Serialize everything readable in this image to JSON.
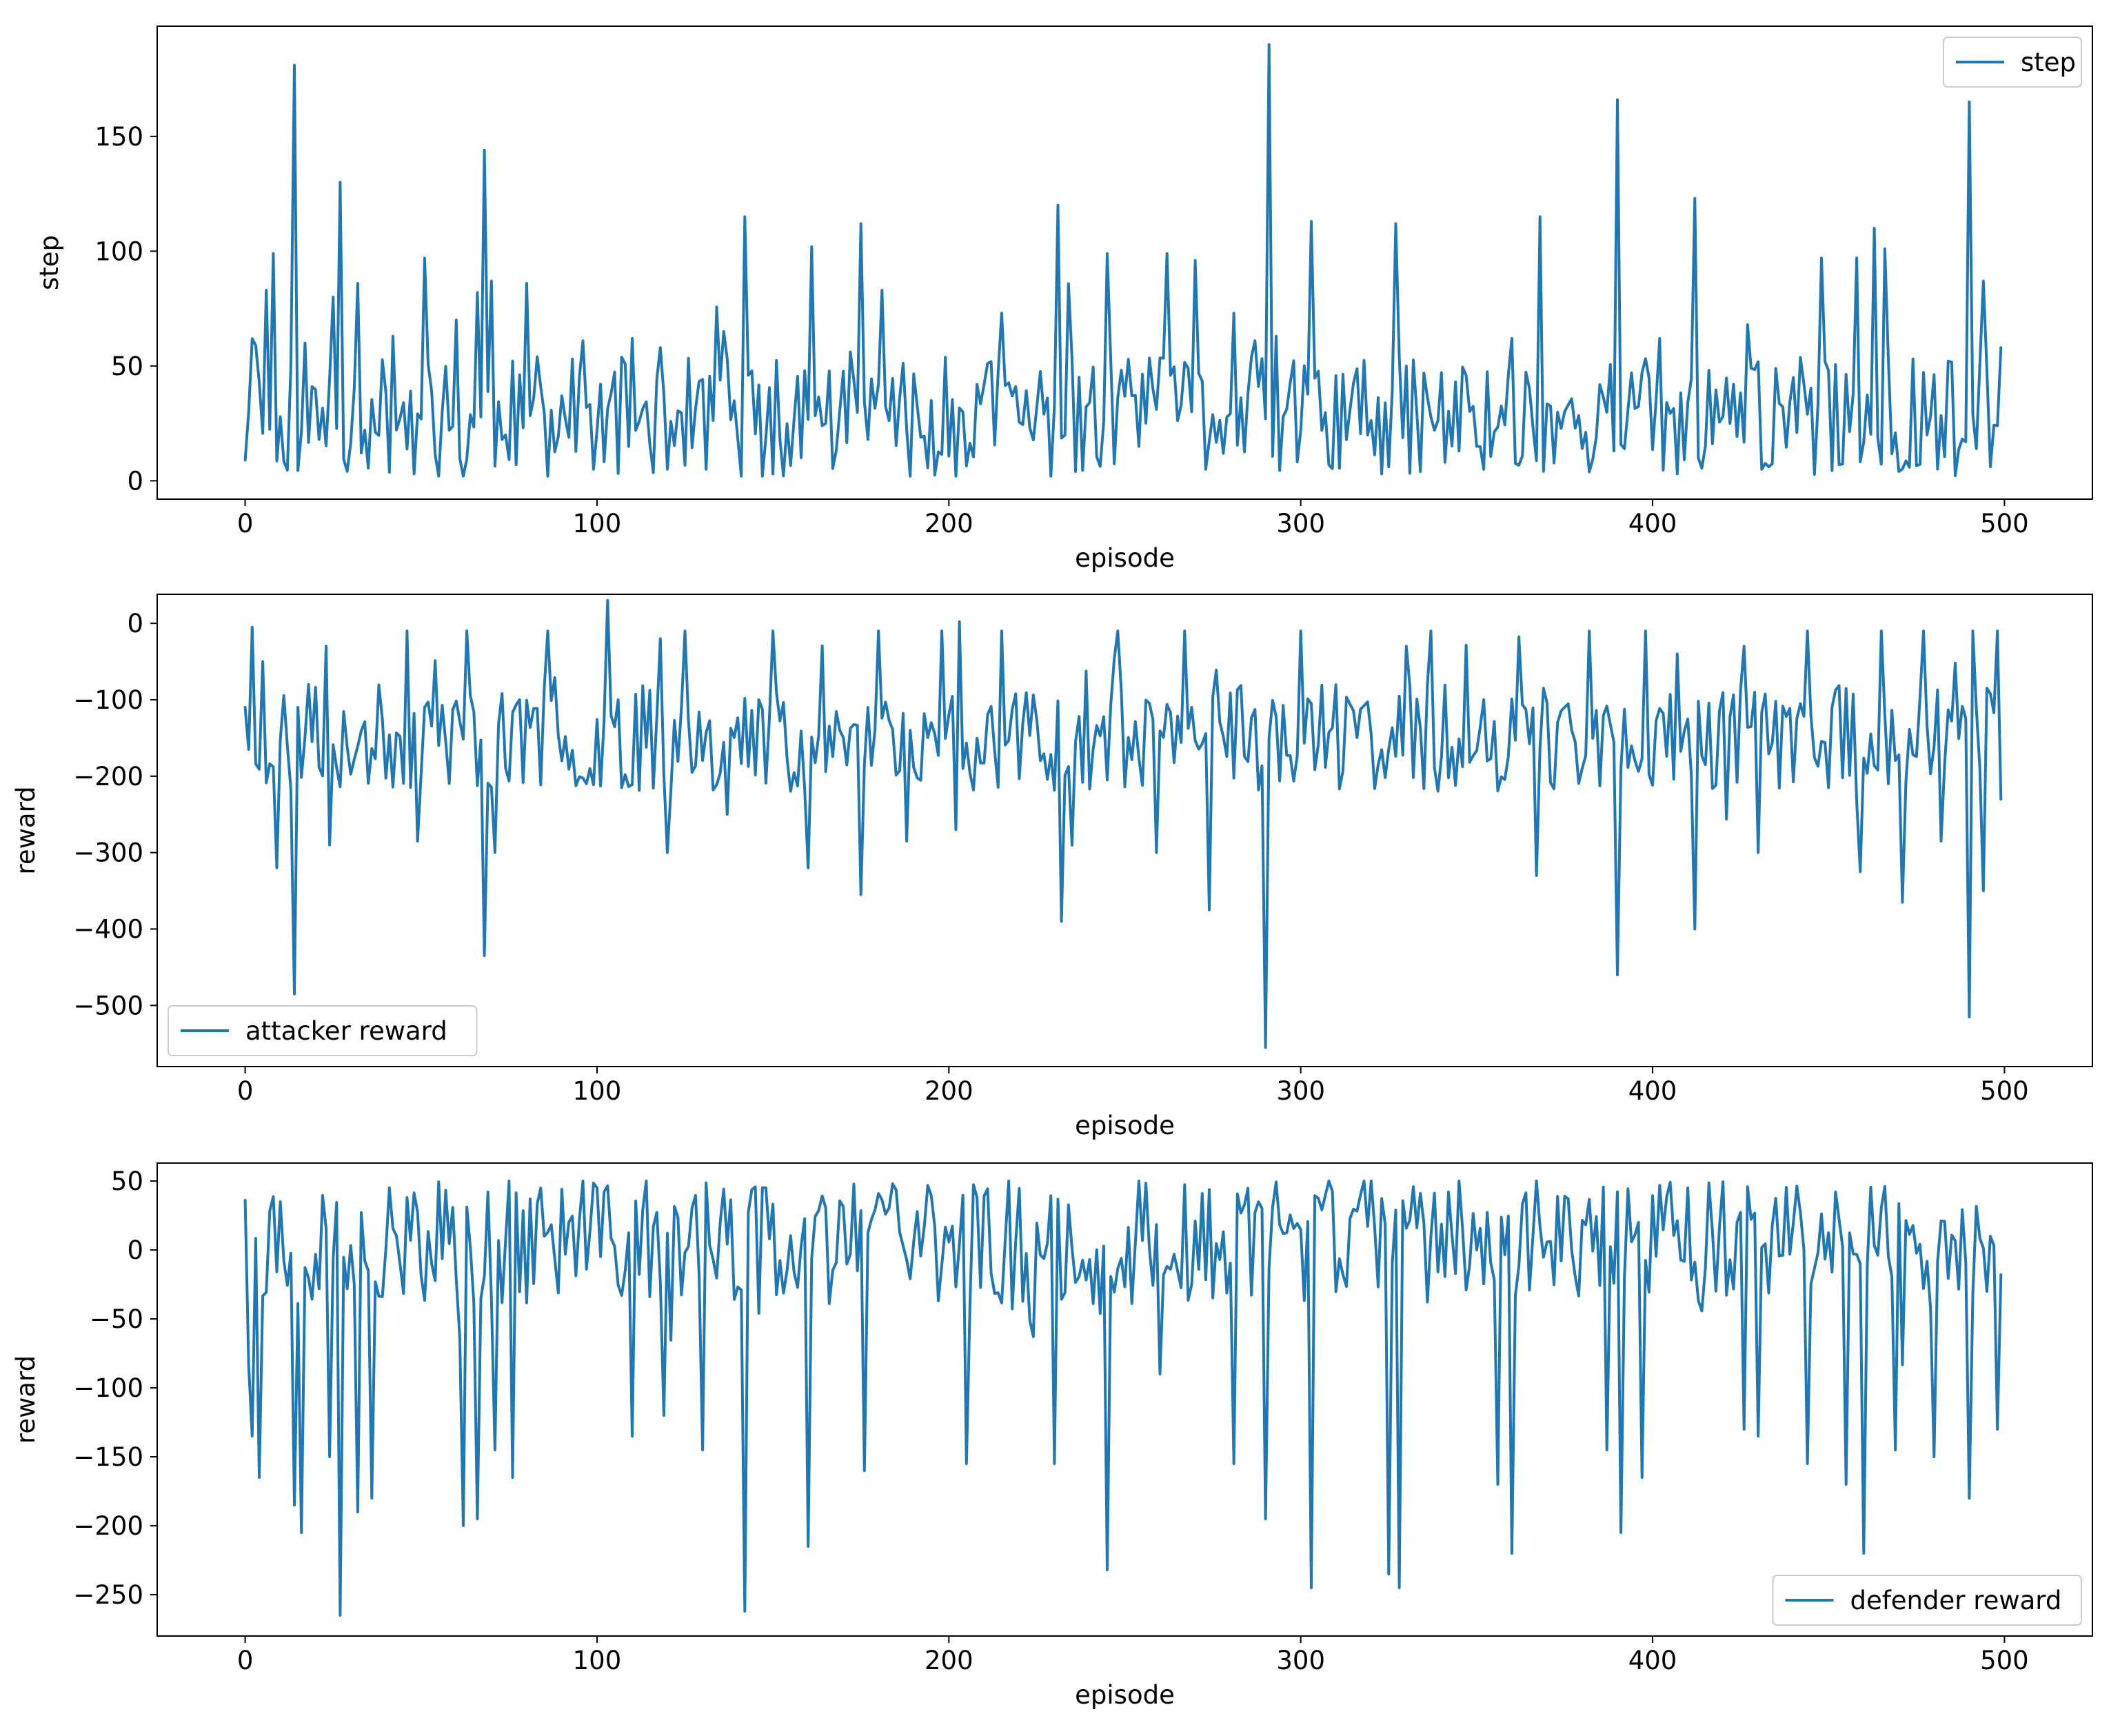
{
  "colors": {
    "series": "#1f77b4"
  },
  "chart_data": [
    {
      "type": "line",
      "xlabel": "episode",
      "ylabel": "step",
      "xlim": [
        -25,
        525
      ],
      "ylim": [
        -8,
        198
      ],
      "xticks": [
        0,
        100,
        200,
        300,
        400,
        500
      ],
      "yticks": [
        0,
        50,
        100,
        150
      ],
      "legend": "top-right",
      "series": [
        {
          "name": "step",
          "seed": 11,
          "x_start": 0,
          "x_end": 499,
          "count": 500,
          "base": 28,
          "spread": 26,
          "min": 2,
          "anchors": [
            [
              0,
              9
            ],
            [
              1,
              30
            ],
            [
              3,
              59
            ],
            [
              6,
              83
            ],
            [
              8,
              99
            ],
            [
              14,
              181
            ],
            [
              17,
              60
            ],
            [
              21,
              18
            ],
            [
              25,
              80
            ],
            [
              27,
              130
            ],
            [
              32,
              86
            ],
            [
              42,
              63
            ],
            [
              48,
              3
            ],
            [
              51,
              97
            ],
            [
              56,
              30
            ],
            [
              60,
              70
            ],
            [
              62,
              2
            ],
            [
              66,
              82
            ],
            [
              68,
              144
            ],
            [
              70,
              87
            ],
            [
              74,
              20
            ],
            [
              80,
              86
            ],
            [
              96,
              61
            ],
            [
              99,
              5
            ],
            [
              110,
              62
            ],
            [
              118,
              58
            ],
            [
              142,
              115
            ],
            [
              150,
              3
            ],
            [
              158,
              10
            ],
            [
              161,
              102
            ],
            [
              175,
              112
            ],
            [
              181,
              83
            ],
            [
              189,
              2
            ],
            [
              208,
              42
            ],
            [
              215,
              73
            ],
            [
              231,
              120
            ],
            [
              236,
              4
            ],
            [
              245,
              99
            ],
            [
              262,
              99
            ],
            [
              270,
              96
            ],
            [
              273,
              5
            ],
            [
              281,
              73
            ],
            [
              287,
              61
            ],
            [
              291,
              190
            ],
            [
              293,
              63
            ],
            [
              300,
              22
            ],
            [
              303,
              113
            ],
            [
              323,
              3
            ],
            [
              327,
              112
            ],
            [
              330,
              50
            ],
            [
              341,
              8
            ],
            [
              352,
              5
            ],
            [
              360,
              62
            ],
            [
              368,
              115
            ],
            [
              376,
              33
            ],
            [
              390,
              166
            ],
            [
              392,
              14
            ],
            [
              402,
              62
            ],
            [
              407,
              3
            ],
            [
              412,
              123
            ],
            [
              420,
              28
            ],
            [
              427,
              68
            ],
            [
              431,
              5
            ],
            [
              441,
              21
            ],
            [
              448,
              97
            ],
            [
              458,
              97
            ],
            [
              463,
              110
            ],
            [
              466,
              101
            ],
            [
              470,
              4
            ],
            [
              478,
              20
            ],
            [
              490,
              165
            ],
            [
              492,
              14
            ],
            [
              494,
              87
            ],
            [
              498,
              24
            ],
            [
              499,
              58
            ]
          ]
        }
      ]
    },
    {
      "type": "line",
      "xlabel": "episode",
      "ylabel": "reward",
      "xlim": [
        -25,
        525
      ],
      "ylim": [
        -580,
        38
      ],
      "xticks": [
        0,
        100,
        200,
        300,
        400,
        500
      ],
      "yticks": [
        0,
        -100,
        -200,
        -300,
        -400,
        -500
      ],
      "legend": "bottom-left",
      "series": [
        {
          "name": "attacker reward",
          "seed": 23,
          "x_start": 0,
          "x_end": 499,
          "count": 500,
          "base": -150,
          "spread": 70,
          "min": -560,
          "max": 32,
          "anchors": [
            [
              0,
              -110
            ],
            [
              1,
              -165
            ],
            [
              2,
              -5
            ],
            [
              5,
              -50
            ],
            [
              9,
              -320
            ],
            [
              14,
              -485
            ],
            [
              15,
              -110
            ],
            [
              23,
              -30
            ],
            [
              24,
              -290
            ],
            [
              46,
              -10
            ],
            [
              49,
              -285
            ],
            [
              51,
              -110
            ],
            [
              63,
              -10
            ],
            [
              68,
              -435
            ],
            [
              71,
              -300
            ],
            [
              86,
              -10
            ],
            [
              103,
              30
            ],
            [
              106,
              -100
            ],
            [
              118,
              -20
            ],
            [
              120,
              -300
            ],
            [
              125,
              -10
            ],
            [
              137,
              -250
            ],
            [
              146,
              -100
            ],
            [
              150,
              -10
            ],
            [
              160,
              -320
            ],
            [
              175,
              -355
            ],
            [
              180,
              -10
            ],
            [
              188,
              -285
            ],
            [
              189,
              -140
            ],
            [
              195,
              -130
            ],
            [
              198,
              -10
            ],
            [
              202,
              -270
            ],
            [
              215,
              -10
            ],
            [
              232,
              -390
            ],
            [
              248,
              -10
            ],
            [
              259,
              -300
            ],
            [
              267,
              -10
            ],
            [
              274,
              -375
            ],
            [
              290,
              -555
            ],
            [
              291,
              -150
            ],
            [
              300,
              -10
            ],
            [
              322,
              -185
            ],
            [
              330,
              -30
            ],
            [
              337,
              -10
            ],
            [
              352,
              -100
            ],
            [
              367,
              -330
            ],
            [
              382,
              -10
            ],
            [
              390,
              -460
            ],
            [
              398,
              -10
            ],
            [
              407,
              -40
            ],
            [
              412,
              -400
            ],
            [
              426,
              -30
            ],
            [
              430,
              -300
            ],
            [
              444,
              -10
            ],
            [
              459,
              -325
            ],
            [
              465,
              -10
            ],
            [
              471,
              -365
            ],
            [
              477,
              -10
            ],
            [
              482,
              -285
            ],
            [
              490,
              -515
            ],
            [
              491,
              -10
            ],
            [
              494,
              -350
            ],
            [
              498,
              -10
            ],
            [
              499,
              -230
            ]
          ]
        }
      ]
    },
    {
      "type": "line",
      "xlabel": "episode",
      "ylabel": "reward",
      "xlim": [
        -25,
        525
      ],
      "ylim": [
        -280,
        63
      ],
      "xticks": [
        0,
        100,
        200,
        300,
        400,
        500
      ],
      "yticks": [
        50,
        0,
        -50,
        -100,
        -150,
        -200,
        -250
      ],
      "legend": "bottom-right",
      "series": [
        {
          "name": "defender reward",
          "seed": 37,
          "x_start": 0,
          "x_end": 499,
          "count": 500,
          "base": 5,
          "spread": 45,
          "min": -265,
          "max": 50,
          "anchors": [
            [
              0,
              36
            ],
            [
              2,
              -135
            ],
            [
              4,
              -165
            ],
            [
              10,
              35
            ],
            [
              14,
              -185
            ],
            [
              16,
              -205
            ],
            [
              24,
              -150
            ],
            [
              27,
              -265
            ],
            [
              32,
              -190
            ],
            [
              36,
              -180
            ],
            [
              41,
              45
            ],
            [
              44,
              -10
            ],
            [
              53,
              -10
            ],
            [
              62,
              -200
            ],
            [
              66,
              -195
            ],
            [
              71,
              -145
            ],
            [
              76,
              -165
            ],
            [
              85,
              10
            ],
            [
              100,
              45
            ],
            [
              110,
              -135
            ],
            [
              119,
              -120
            ],
            [
              130,
              -145
            ],
            [
              142,
              -262
            ],
            [
              148,
              45
            ],
            [
              160,
              -215
            ],
            [
              176,
              -160
            ],
            [
              184,
              48
            ],
            [
              205,
              -155
            ],
            [
              230,
              -155
            ],
            [
              245,
              -232
            ],
            [
              260,
              -90
            ],
            [
              281,
              -155
            ],
            [
              290,
              -195
            ],
            [
              303,
              -245
            ],
            [
              320,
              50
            ],
            [
              325,
              -235
            ],
            [
              328,
              -245
            ],
            [
              342,
              42
            ],
            [
              356,
              -170
            ],
            [
              360,
              -220
            ],
            [
              387,
              -145
            ],
            [
              391,
              -205
            ],
            [
              397,
              -165
            ],
            [
              410,
              45
            ],
            [
              426,
              -130
            ],
            [
              430,
              -135
            ],
            [
              444,
              -155
            ],
            [
              455,
              -170
            ],
            [
              460,
              -220
            ],
            [
              469,
              -145
            ],
            [
              480,
              -150
            ],
            [
              490,
              -180
            ],
            [
              496,
              10
            ],
            [
              498,
              -130
            ],
            [
              499,
              -18
            ]
          ]
        }
      ]
    }
  ]
}
